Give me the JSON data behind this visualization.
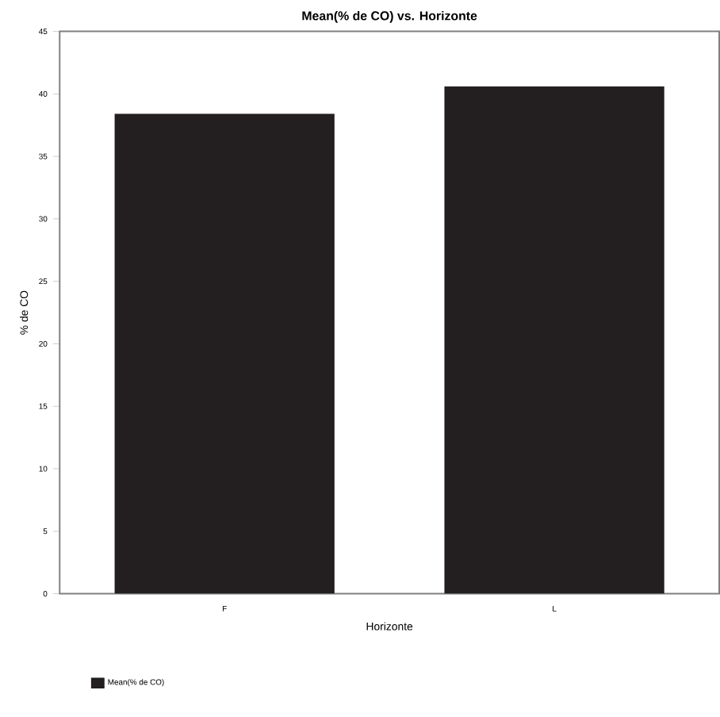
{
  "chart_data": {
    "type": "bar",
    "title": "Mean(% de CO) vs. Horizonte",
    "xlabel": "Horizonte",
    "ylabel": "% de CO",
    "categories": [
      "F",
      "L"
    ],
    "series": [
      {
        "name": "Mean(% de CO)",
        "color": "#231f20",
        "values": [
          38.4,
          40.6
        ]
      }
    ],
    "ylim": [
      0,
      45
    ],
    "yticks": [
      0,
      5,
      10,
      15,
      20,
      25,
      30,
      35,
      40,
      45
    ],
    "grid": false,
    "legend": "bottom"
  }
}
